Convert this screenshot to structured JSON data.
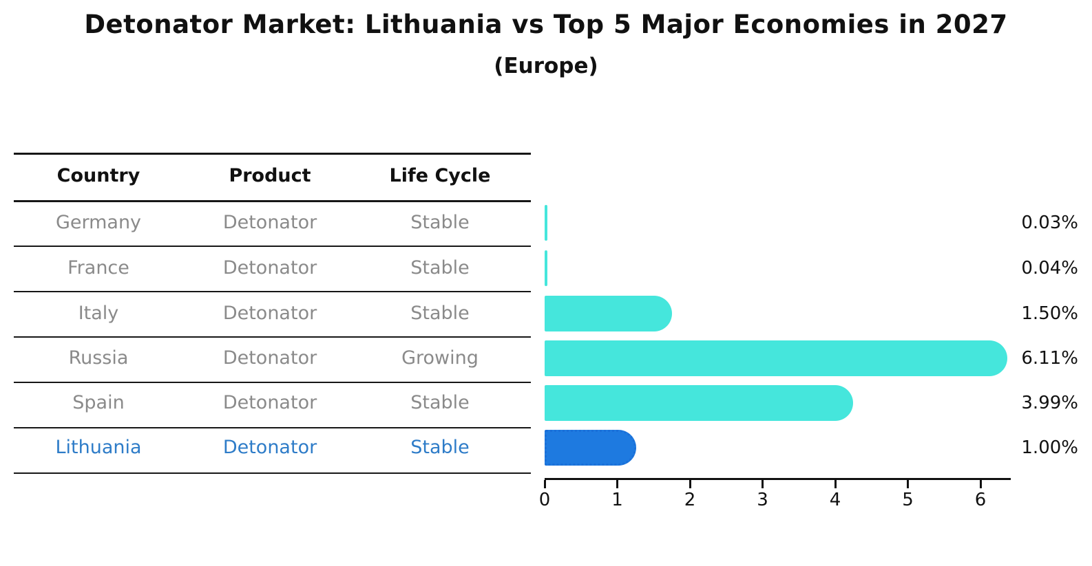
{
  "title": "Detonator Market: Lithuania vs Top 5 Major Economies in 2027",
  "subtitle": "(Europe)",
  "table": {
    "headers": [
      "Country",
      "Product",
      "Life Cycle"
    ],
    "rows": [
      {
        "country": "Germany",
        "product": "Detonator",
        "life_cycle": "Stable",
        "highlight": false
      },
      {
        "country": "France",
        "product": "Detonator",
        "life_cycle": "Stable",
        "highlight": false
      },
      {
        "country": "Italy",
        "product": "Detonator",
        "life_cycle": "Stable",
        "highlight": false
      },
      {
        "country": "Russia",
        "product": "Detonator",
        "life_cycle": "Growing",
        "highlight": false
      },
      {
        "country": "Spain",
        "product": "Detonator",
        "life_cycle": "Stable",
        "highlight": false
      },
      {
        "country": "Lithuania",
        "product": "Detonator",
        "life_cycle": "Stable",
        "highlight": true
      }
    ]
  },
  "chart_data": {
    "type": "bar",
    "orientation": "horizontal",
    "title": "Detonator Market: Lithuania vs Top 5 Major Economies in 2027",
    "subtitle": "(Europe)",
    "categories": [
      "Germany",
      "France",
      "Italy",
      "Russia",
      "Spain",
      "Lithuania"
    ],
    "values": [
      0.03,
      0.04,
      1.5,
      6.11,
      3.99,
      1.0
    ],
    "labels": [
      "0.03%",
      "0.04%",
      "1.50%",
      "6.11%",
      "3.99%",
      "1.00%"
    ],
    "x_ticks": [
      "0",
      "1",
      "2",
      "3",
      "4",
      "5",
      "6"
    ],
    "xlim": [
      0,
      6.42
    ],
    "grid": false,
    "legend": false,
    "highlight_index": 5,
    "colors": {
      "default": "#45E6DC",
      "highlight": "#1E7AE0",
      "highlight_border": "#1A6FD8",
      "row_text": "#8A8A8A",
      "row_highlight_text": "#2E7CC8",
      "axis": "#111111"
    }
  }
}
